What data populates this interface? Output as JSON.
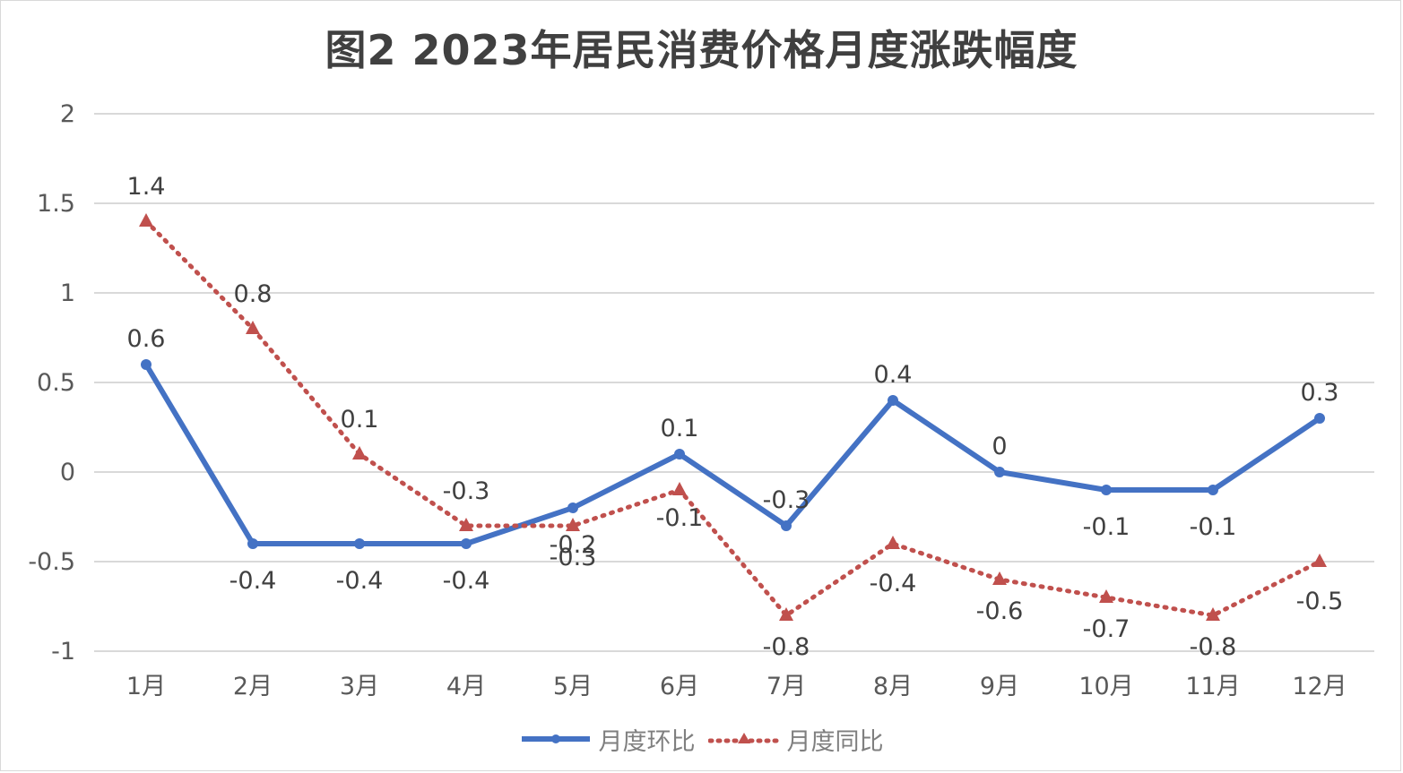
{
  "chart_data": {
    "type": "line",
    "title": "图2  2023年居民消费价格月度涨跌幅度",
    "categories": [
      "1月",
      "2月",
      "3月",
      "4月",
      "5月",
      "6月",
      "7月",
      "8月",
      "9月",
      "10月",
      "11月",
      "12月"
    ],
    "series": [
      {
        "name": "月度环比",
        "color": "#4472c4",
        "style": "solid",
        "marker": "circle",
        "values": [
          0.6,
          -0.4,
          -0.4,
          -0.4,
          -0.2,
          0.1,
          -0.3,
          0.4,
          0,
          -0.1,
          -0.1,
          0.3
        ],
        "labels": [
          "0.6",
          "-0.4",
          "-0.4",
          "-0.4",
          "-0.2",
          "0.1",
          "-0.3",
          "0.4",
          "0",
          "-0.1",
          "-0.1",
          "0.3"
        ]
      },
      {
        "name": "月度同比",
        "color": "#c0504d",
        "style": "dotted",
        "marker": "triangle",
        "values": [
          1.4,
          0.8,
          0.1,
          -0.3,
          -0.3,
          -0.1,
          -0.8,
          -0.4,
          -0.6,
          -0.7,
          -0.8,
          -0.5
        ],
        "labels": [
          "1.4",
          "0.8",
          "0.1",
          "-0.3",
          "-0.3",
          "-0.1",
          "-0.8",
          "-0.4",
          "-0.6",
          "-0.7",
          "-0.8",
          "-0.5"
        ]
      }
    ],
    "ylim": [
      -1,
      2
    ],
    "yticks": [
      "-1",
      "-0.5",
      "0",
      "0.5",
      "1",
      "1.5",
      "2"
    ],
    "grid": true,
    "legend_position": "bottom"
  }
}
